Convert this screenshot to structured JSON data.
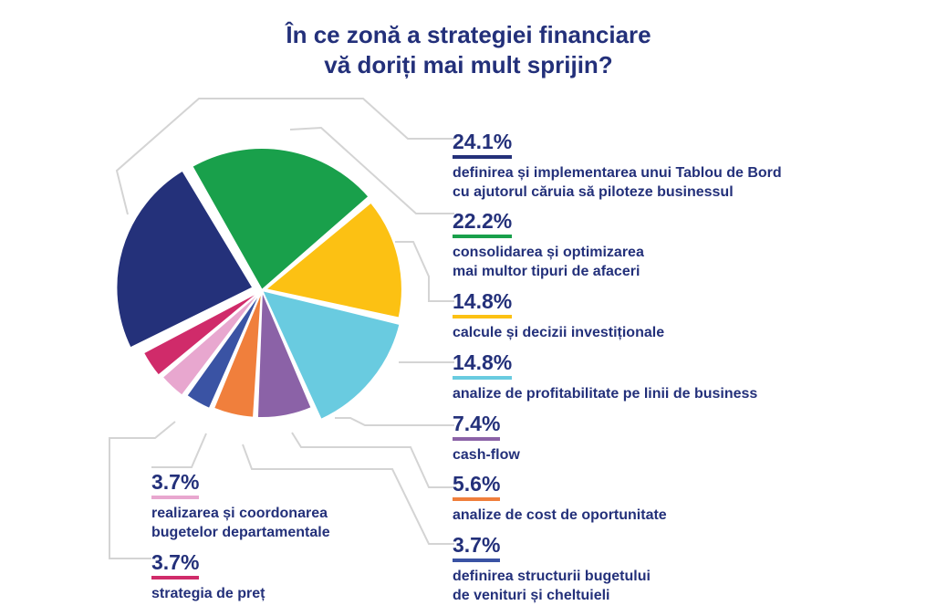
{
  "title_lines": [
    "În ce zonă a strategiei financiare",
    "vă doriți mai mult sprijin?"
  ],
  "chart_data": {
    "type": "pie",
    "title": "În ce zonă a strategiei financiare vă doriți mai mult sprijin?",
    "slices": [
      {
        "label": "definirea și implementarea unui Tablou de Bord cu ajutorul căruia să piloteze businessul",
        "lines": [
          "definirea și implementarea unui Tablou de Bord",
          "cu ajutorul căruia să piloteze businessul"
        ],
        "value": 24.1,
        "pct_label": "24.1%",
        "color": "#24317a"
      },
      {
        "label": "consolidarea și optimizarea mai multor tipuri de afaceri",
        "lines": [
          "consolidarea și optimizarea",
          "mai multor tipuri de afaceri"
        ],
        "value": 22.2,
        "pct_label": "22.2%",
        "color": "#19a04b"
      },
      {
        "label": "calcule și decizii investiționale",
        "lines": [
          "calcule și decizii investiționale"
        ],
        "value": 14.8,
        "pct_label": "14.8%",
        "color": "#fcc113"
      },
      {
        "label": "analize de profitabilitate pe linii de business",
        "lines": [
          "analize de profitabilitate pe linii de business"
        ],
        "value": 14.8,
        "pct_label": "14.8%",
        "color": "#69cbe0"
      },
      {
        "label": "cash-flow",
        "lines": [
          "cash-flow"
        ],
        "value": 7.4,
        "pct_label": "7.4%",
        "color": "#8b62a7"
      },
      {
        "label": "analize de cost de oportunitate",
        "lines": [
          "analize de cost de oportunitate"
        ],
        "value": 5.6,
        "pct_label": "5.6%",
        "color": "#f07f3c"
      },
      {
        "label": "definirea structurii bugetului de venituri și cheltuieli",
        "lines": [
          "definirea structurii bugetului",
          "de venituri și cheltuieli"
        ],
        "value": 3.7,
        "pct_label": "3.7%",
        "color": "#3a53a4"
      },
      {
        "label": "realizarea și coordonarea bugetelor departamentale",
        "lines": [
          "realizarea și coordonarea",
          "bugetelor departamentale"
        ],
        "value": 3.7,
        "pct_label": "3.7%",
        "color": "#e8a7cf"
      },
      {
        "label": "strategia de preț",
        "lines": [
          "strategia de preț"
        ],
        "value": 3.7,
        "pct_label": "3.7%",
        "color": "#d02b6a"
      }
    ]
  }
}
